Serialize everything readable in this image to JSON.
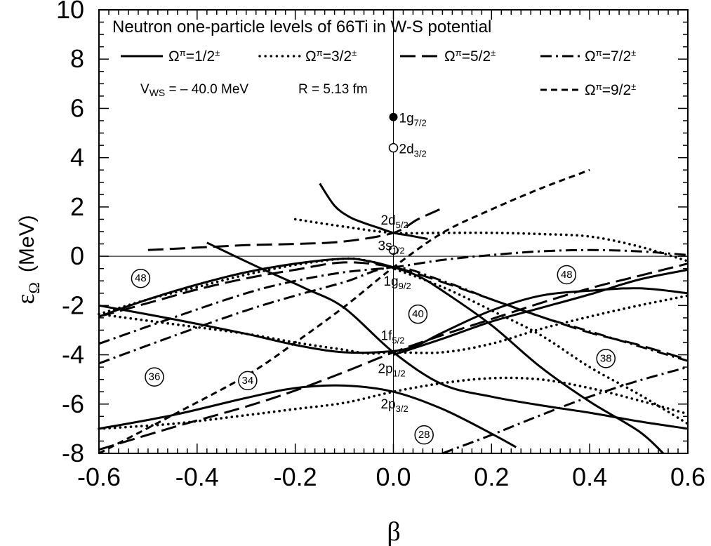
{
  "chart_data": {
    "type": "line",
    "title": "Neutron one-particle levels of 66Ti in W-S potential",
    "xlabel": "β",
    "ylabel": {
      "symbol": "ε",
      "sub": "Ω",
      "unit": "(MeV)"
    },
    "xlim": [
      -0.6,
      0.6
    ],
    "ylim": [
      -8,
      10
    ],
    "x_ticks": [
      "-0.6",
      "-0.4",
      "-0.2",
      "0.0",
      "0.2",
      "0.4",
      "0.6"
    ],
    "y_ticks": [
      "-8",
      "-6",
      "-4",
      "-2",
      "0",
      "2",
      "4",
      "6",
      "8",
      "10"
    ],
    "annotations": {
      "potential": {
        "pre": "V",
        "sub": "WS",
        "post": " = – 40.0 MeV"
      },
      "radius": "R = 5.13 fm"
    },
    "legend": [
      {
        "name": "Ω",
        "sup": "π",
        "rest": "=1/2",
        "sup2": "±",
        "style": "solid"
      },
      {
        "name": "Ω",
        "sup": "π",
        "rest": "=3/2",
        "sup2": "±",
        "style": "dotted"
      },
      {
        "name": "Ω",
        "sup": "π",
        "rest": "=5/2",
        "sup2": "±",
        "style": "longdash"
      },
      {
        "name": "Ω",
        "sup": "π",
        "rest": "=7/2",
        "sup2": "±",
        "style": "dashdot"
      },
      {
        "name": "Ω",
        "sup": "π",
        "rest": "=9/2",
        "sup2": "±",
        "style": "dashed"
      }
    ],
    "spherical_states": [
      {
        "base": "1g",
        "sub": "7/2",
        "energy": 5.65,
        "marker": "filled"
      },
      {
        "base": "2d",
        "sub": "3/2",
        "energy": 4.4,
        "marker": "open"
      },
      {
        "base": "2d",
        "sub": "5/2",
        "energy": 0.95,
        "marker": "none"
      },
      {
        "base": "3s",
        "sub": "1/2",
        "energy": 0.25,
        "marker": "open"
      },
      {
        "base": "1g",
        "sub": "9/2",
        "energy": -0.45,
        "marker": "none"
      },
      {
        "base": "1f",
        "sub": "5/2",
        "energy": -3.8,
        "marker": "none"
      },
      {
        "base": "2p",
        "sub": "1/2",
        "energy": -4.0,
        "marker": "none"
      },
      {
        "base": "2p",
        "sub": "3/2",
        "energy": -5.5,
        "marker": "none"
      }
    ],
    "magic_numbers": [
      {
        "label": "48",
        "x": -0.515,
        "y": -0.9
      },
      {
        "label": "48",
        "x": 0.353,
        "y": -0.75
      },
      {
        "label": "40",
        "x": 0.05,
        "y": -2.35
      },
      {
        "label": "38",
        "x": 0.433,
        "y": -4.15
      },
      {
        "label": "36",
        "x": -0.487,
        "y": -4.9
      },
      {
        "label": "34",
        "x": -0.297,
        "y": -5.05
      },
      {
        "label": "28",
        "x": 0.0625,
        "y": -7.25
      }
    ],
    "series": [
      {
        "style": "solid",
        "x": [
          -0.15,
          -0.12,
          -0.09,
          -0.06,
          -0.03,
          0.0,
          0.03,
          0.07
        ],
        "y": [
          2.95,
          2.05,
          1.6,
          1.35,
          1.15,
          0.95,
          0.85,
          0.7
        ]
      },
      {
        "style": "solid",
        "x": [
          -0.38,
          -0.28,
          -0.18,
          -0.1,
          0.0,
          0.1,
          0.2,
          0.3,
          0.4,
          0.5,
          0.6
        ],
        "y": [
          0.55,
          -0.4,
          -1.3,
          -2.1,
          -3.9,
          -5.2,
          -5.7,
          -6.05,
          -6.35,
          -6.7,
          -7.0
        ]
      },
      {
        "style": "solid",
        "x": [
          -0.6,
          -0.5,
          -0.4,
          -0.3,
          -0.2,
          -0.1,
          -0.05,
          0.0,
          0.05,
          0.1,
          0.2,
          0.3,
          0.4,
          0.5,
          0.55
        ],
        "y": [
          -2.45,
          -1.75,
          -1.15,
          -0.65,
          -0.3,
          -0.1,
          -0.2,
          -0.45,
          -0.8,
          -1.4,
          -2.8,
          -4.5,
          -5.9,
          -7.1,
          -8.0
        ]
      },
      {
        "style": "solid",
        "x": [
          -0.6,
          -0.45,
          -0.3,
          -0.2,
          -0.1,
          0.0,
          0.05,
          0.1,
          0.2,
          0.3,
          0.4,
          0.5,
          0.6
        ],
        "y": [
          -2.0,
          -2.55,
          -3.15,
          -3.6,
          -3.9,
          -3.85,
          -3.6,
          -3.1,
          -2.2,
          -1.6,
          -1.4,
          -1.3,
          -1.5
        ]
      },
      {
        "style": "solid",
        "x": [
          0.0,
          0.1,
          0.2,
          0.3,
          0.4,
          0.5,
          0.6
        ],
        "y": [
          -4.0,
          -3.35,
          -2.65,
          -2.1,
          -1.55,
          -0.95,
          -0.55
        ]
      },
      {
        "style": "solid",
        "x": [
          -0.6,
          -0.45,
          -0.3,
          -0.2,
          -0.1,
          0.0,
          0.1,
          0.2,
          0.25
        ],
        "y": [
          -7.0,
          -6.45,
          -5.75,
          -5.35,
          -5.25,
          -5.5,
          -6.2,
          -7.2,
          -7.75
        ]
      },
      {
        "style": "dotted",
        "x": [
          -0.2,
          -0.1,
          0.0,
          0.1,
          0.2,
          0.3,
          0.4,
          0.5,
          0.6
        ],
        "y": [
          1.5,
          1.2,
          0.95,
          0.95,
          0.95,
          0.9,
          0.8,
          0.4,
          -0.2
        ]
      },
      {
        "style": "dotted",
        "x": [
          -0.6,
          -0.5,
          -0.4,
          -0.3,
          -0.2,
          -0.1,
          -0.05,
          0.0,
          0.1,
          0.2,
          0.3,
          0.4,
          0.5,
          0.6
        ],
        "y": [
          -2.35,
          -1.75,
          -1.25,
          -0.75,
          -0.35,
          -0.1,
          -0.2,
          -0.5,
          -1.25,
          -2.2,
          -3.2,
          -4.5,
          -5.6,
          -6.8
        ]
      },
      {
        "style": "dotted",
        "x": [
          -0.6,
          -0.45,
          -0.3,
          -0.2,
          -0.1,
          -0.05,
          0.0,
          0.1,
          0.2,
          0.3,
          0.4,
          0.5,
          0.6
        ],
        "y": [
          -2.35,
          -2.75,
          -3.15,
          -3.5,
          -3.8,
          -3.95,
          -3.9,
          -3.9,
          -3.55,
          -2.95,
          -2.45,
          -2.0,
          -1.6
        ]
      },
      {
        "style": "dotted",
        "x": [
          -0.6,
          -0.45,
          -0.3,
          -0.2,
          -0.1,
          0.0,
          0.1,
          0.2,
          0.3,
          0.4,
          0.5,
          0.6
        ],
        "y": [
          -7.0,
          -6.8,
          -6.45,
          -6.2,
          -5.95,
          -5.5,
          -5.15,
          -4.95,
          -5.0,
          -5.35,
          -5.85,
          -6.4
        ]
      },
      {
        "style": "longdash",
        "x": [
          -0.5,
          -0.4,
          -0.3,
          -0.2,
          -0.1,
          0.0,
          0.05,
          0.1
        ],
        "y": [
          0.25,
          0.35,
          0.45,
          0.5,
          0.6,
          0.95,
          1.5,
          1.95
        ]
      },
      {
        "style": "longdash",
        "x": [
          -0.6,
          -0.5,
          -0.4,
          -0.3,
          -0.2,
          -0.1,
          0.0,
          0.1,
          0.2,
          0.3,
          0.4,
          0.5,
          0.6
        ],
        "y": [
          -2.45,
          -1.9,
          -1.35,
          -0.9,
          -0.55,
          -0.25,
          -0.45,
          -1.05,
          -1.75,
          -2.45,
          -3.1,
          -3.6,
          -4.2
        ]
      },
      {
        "style": "longdash",
        "x": [
          -0.6,
          -0.45,
          -0.3,
          -0.2,
          -0.1,
          0.0,
          0.1,
          0.2,
          0.3,
          0.4,
          0.5,
          0.6
        ],
        "y": [
          -7.85,
          -6.95,
          -6.1,
          -5.45,
          -4.7,
          -3.9,
          -3.2,
          -2.55,
          -1.9,
          -1.3,
          -0.8,
          -0.3
        ]
      },
      {
        "style": "dashdot",
        "x": [
          -0.6,
          -0.45,
          -0.3,
          -0.2,
          -0.1,
          0.0,
          0.1,
          0.2,
          0.3,
          0.4,
          0.5,
          0.6
        ],
        "y": [
          -3.55,
          -2.5,
          -1.5,
          -1.0,
          -0.65,
          -0.45,
          -0.15,
          0.05,
          0.2,
          0.25,
          0.2,
          0.05
        ]
      },
      {
        "style": "dashdot",
        "x": [
          -0.6,
          -0.45,
          -0.3,
          -0.2,
          -0.1,
          0.0,
          0.1,
          0.2,
          0.3,
          0.4,
          0.5,
          0.6
        ],
        "y": [
          -4.35,
          -3.25,
          -2.2,
          -1.6,
          -1.05,
          -0.45,
          -1.0,
          -1.75,
          -2.45,
          -3.05,
          -3.65,
          -4.25
        ]
      },
      {
        "style": "dashdot",
        "x": [
          0.1,
          0.2,
          0.3,
          0.4,
          0.5,
          0.6
        ],
        "y": [
          -8.0,
          -7.25,
          -6.45,
          -5.7,
          -5.05,
          -4.5
        ]
      },
      {
        "style": "dashed",
        "x": [
          -0.6,
          -0.45,
          -0.3,
          -0.2,
          -0.1,
          0.0,
          0.1,
          0.2,
          0.3,
          0.4
        ],
        "y": [
          -8.0,
          -6.45,
          -4.85,
          -3.5,
          -2.05,
          -0.45,
          0.95,
          1.9,
          2.75,
          3.5
        ]
      }
    ]
  }
}
